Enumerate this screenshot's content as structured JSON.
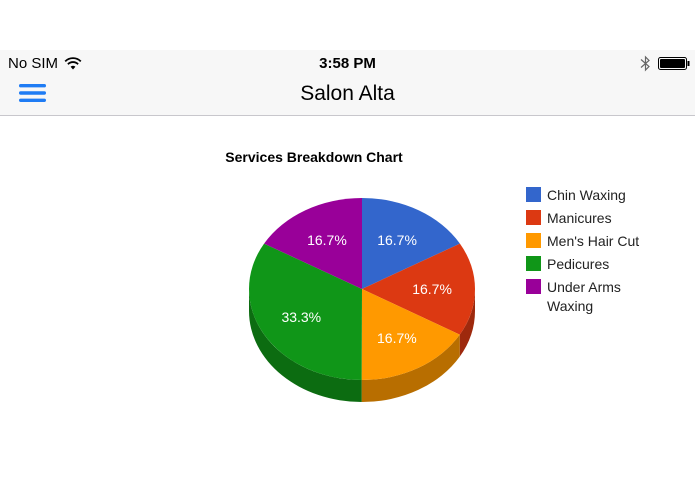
{
  "status_bar": {
    "carrier": "No SIM",
    "time": "3:58 PM",
    "icons": [
      "wifi-icon",
      "bluetooth-icon",
      "battery-icon"
    ]
  },
  "nav": {
    "title": "Salon Alta",
    "menu_icon": "hamburger-menu-icon",
    "accent_color": "#1f7cf4"
  },
  "chart_data": {
    "type": "pie",
    "title": "Services Breakdown Chart",
    "is_3d": true,
    "legend_position": "right",
    "slices": [
      {
        "label": "Chin Waxing",
        "value": 16.7,
        "display": "16.7%",
        "color": "#3366cc"
      },
      {
        "label": "Manicures",
        "value": 16.7,
        "display": "16.7%",
        "color": "#dc3912"
      },
      {
        "label": "Men's Hair Cut",
        "value": 16.7,
        "display": "16.7%",
        "color": "#ff9900"
      },
      {
        "label": "Pedicures",
        "value": 33.3,
        "display": "33.3%",
        "color": "#109618"
      },
      {
        "label": "Under Arms Waxing",
        "value": 16.7,
        "display": "16.7%",
        "color": "#990099"
      }
    ],
    "legend_lines": [
      [
        "Chin Waxing"
      ],
      [
        "Manicures"
      ],
      [
        "Men's Hair Cut"
      ],
      [
        "Pedicures"
      ],
      [
        "Under Arms",
        "Waxing"
      ]
    ]
  }
}
